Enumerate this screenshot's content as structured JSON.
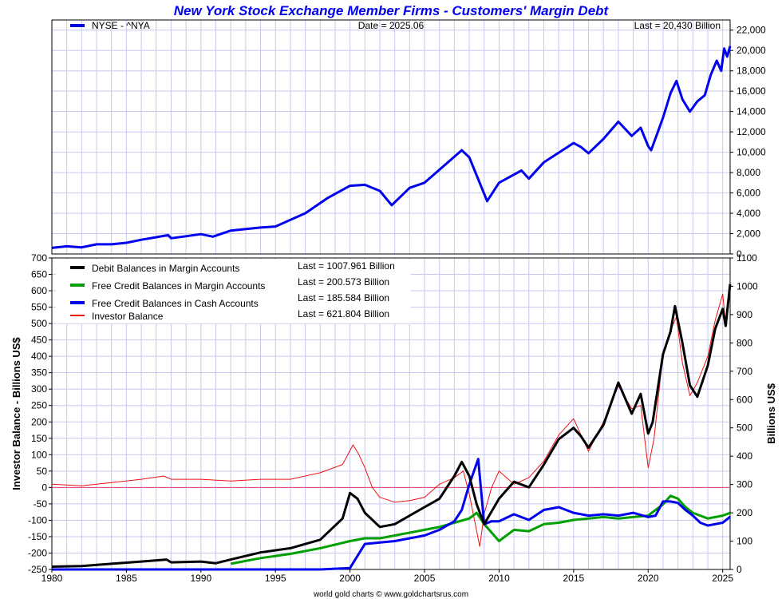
{
  "chart_data": [
    {
      "panel": "top",
      "type": "line",
      "title": "New York Stock Exchange Member Firms - Customers' Margin Debt",
      "date_label": "Date = 2025.06",
      "last_label": "Last = 20,430 Billion",
      "xlim": [
        1980,
        2025.5
      ],
      "ylim": [
        0,
        23000
      ],
      "y_axis_side": "right",
      "yticks": [
        0,
        2000,
        4000,
        6000,
        8000,
        10000,
        12000,
        14000,
        16000,
        18000,
        20000,
        22000
      ],
      "ytick_labels": [
        "0",
        "2,000",
        "4,000",
        "6,000",
        "8,000",
        "10,000",
        "12,000",
        "14,000",
        "16,000",
        "18,000",
        "20,000",
        "22,000"
      ],
      "grid": true,
      "legend_placement": "top-left",
      "series": [
        {
          "name": "NYSE - ^NYA",
          "color": "#0000ee",
          "x": [
            1980,
            1981,
            1982,
            1983,
            1984,
            1985,
            1986,
            1987,
            1987.8,
            1988,
            1990,
            1990.8,
            1992,
            1994,
            1995,
            1997,
            1998.5,
            1999,
            2000,
            2001,
            2002,
            2002.8,
            2004,
            2005,
            2007.5,
            2008,
            2009.2,
            2010,
            2011.5,
            2012,
            2013,
            2015,
            2015.5,
            2016,
            2017,
            2018,
            2018.9,
            2019.5,
            2020,
            2020.2,
            2020.6,
            2021,
            2021.5,
            2021.9,
            2022.3,
            2022.8,
            2023.3,
            2023.8,
            2024.2,
            2024.6,
            2024.9,
            2025.1,
            2025.3,
            2025.5
          ],
          "y": [
            600,
            750,
            650,
            950,
            950,
            1100,
            1400,
            1650,
            1850,
            1550,
            1950,
            1700,
            2300,
            2600,
            2700,
            4000,
            5500,
            5900,
            6700,
            6800,
            6200,
            4800,
            6500,
            7000,
            10200,
            9500,
            5200,
            7000,
            8200,
            7400,
            9000,
            10900,
            10500,
            9900,
            11300,
            13000,
            11600,
            12400,
            10600,
            10200,
            11800,
            13400,
            15800,
            17000,
            15200,
            14000,
            15000,
            15600,
            17600,
            19000,
            18000,
            20200,
            19400,
            20430
          ]
        }
      ]
    },
    {
      "panel": "bottom",
      "type": "line",
      "xlim": [
        1980,
        2025.5
      ],
      "xticks": [
        1980,
        1985,
        1990,
        1995,
        2000,
        2005,
        2010,
        2015,
        2020,
        2025
      ],
      "xtick_labels": [
        "1980",
        "1985",
        "1990",
        "1995",
        "2000",
        "2005",
        "2010",
        "2015",
        "2020",
        "2025"
      ],
      "left_axis": {
        "label": "Investor Balance - Billions US$",
        "ylim": [
          -250,
          700
        ],
        "ticks": [
          -250,
          -200,
          -150,
          -100,
          -50,
          0,
          50,
          100,
          150,
          200,
          250,
          300,
          350,
          400,
          450,
          500,
          550,
          600,
          650,
          700
        ],
        "tick_labels": [
          "-250",
          "-200",
          "-150",
          "-100",
          "-50",
          "0",
          "50",
          "100",
          "150",
          "200",
          "250",
          "300",
          "350",
          "400",
          "450",
          "500",
          "550",
          "600",
          "650",
          "700"
        ]
      },
      "right_axis": {
        "label": "Billions US$",
        "ylim": [
          0,
          1100
        ],
        "ticks": [
          0,
          100,
          200,
          300,
          400,
          500,
          600,
          700,
          800,
          900,
          1000,
          1100
        ],
        "tick_labels": [
          "0",
          "100",
          "200",
          "300",
          "400",
          "500",
          "600",
          "700",
          "800",
          "900",
          "1000",
          "1100"
        ]
      },
      "grid": true,
      "legend_placement": "top-left",
      "zero_line_color": "#dd4477",
      "series": [
        {
          "name": "Debit Balances in Margin Accounts",
          "last": "Last = 1007.961 Billion",
          "axis": "right",
          "color": "#000000",
          "x": [
            1980,
            1982,
            1984,
            1986,
            1987.7,
            1988,
            1990,
            1991,
            1992,
            1994,
            1996,
            1998,
            1999.5,
            2000,
            2000.5,
            2001,
            2002,
            2003,
            2005,
            2006,
            2007,
            2007.5,
            2008,
            2008.5,
            2009,
            2010,
            2011,
            2012,
            2013,
            2014,
            2015,
            2015.5,
            2016,
            2017,
            2018,
            2018.9,
            2019.5,
            2020,
            2020.3,
            2021,
            2021.5,
            2021.8,
            2022.3,
            2022.8,
            2023.3,
            2024,
            2024.5,
            2025,
            2025.2,
            2025.5
          ],
          "y": [
            10,
            12,
            20,
            28,
            35,
            25,
            28,
            22,
            35,
            60,
            75,
            105,
            180,
            270,
            250,
            200,
            150,
            160,
            220,
            250,
            330,
            380,
            330,
            230,
            160,
            250,
            310,
            290,
            370,
            460,
            500,
            470,
            430,
            510,
            660,
            550,
            620,
            480,
            520,
            760,
            840,
            930,
            800,
            650,
            610,
            720,
            850,
            920,
            860,
            1008
          ]
        },
        {
          "name": "Free Credit Balances in Margin Accounts",
          "last": "Last = 200.573 Billion",
          "axis": "right",
          "color": "#00a000",
          "x": [
            1992,
            1994,
            1996,
            1998,
            2000,
            2001,
            2002,
            2003,
            2005,
            2006,
            2007,
            2008,
            2008.5,
            2009,
            2010,
            2011,
            2012,
            2013,
            2014,
            2015,
            2016,
            2017,
            2018,
            2019,
            2020,
            2020.5,
            2021,
            2021.5,
            2022,
            2022.5,
            2023,
            2024,
            2025,
            2025.5
          ],
          "y": [
            20,
            40,
            55,
            75,
            100,
            110,
            110,
            120,
            140,
            150,
            165,
            180,
            200,
            160,
            100,
            140,
            135,
            160,
            165,
            175,
            180,
            185,
            180,
            185,
            190,
            210,
            230,
            260,
            250,
            220,
            200,
            180,
            190,
            200
          ]
        },
        {
          "name": "Free Credit Balances in Cash Accounts",
          "last": "Last = 185.584 Billion",
          "axis": "right",
          "color": "#0000ee",
          "x": [
            1980,
            1985,
            1990,
            1995,
            1998,
            2000,
            2001,
            2002,
            2003,
            2004,
            2005,
            2006,
            2007,
            2007.5,
            2008,
            2008.6,
            2009,
            2009.5,
            2010,
            2011,
            2012,
            2013,
            2014,
            2015,
            2016,
            2017,
            2018,
            2019,
            2020,
            2020.5,
            2021,
            2021.5,
            2022,
            2022.5,
            2023,
            2023.5,
            2024,
            2025,
            2025.5
          ],
          "y": [
            0,
            0,
            0,
            0,
            0,
            5,
            90,
            95,
            100,
            110,
            120,
            140,
            170,
            210,
            300,
            390,
            160,
            170,
            170,
            195,
            175,
            210,
            220,
            200,
            190,
            195,
            190,
            200,
            185,
            190,
            240,
            240,
            235,
            210,
            190,
            165,
            155,
            165,
            186
          ]
        },
        {
          "name": "Investor Balance",
          "last": "Last = 621.804 Billion",
          "axis": "left",
          "color": "#ee1111",
          "x": [
            1980,
            1982,
            1984,
            1986,
            1987.5,
            1988,
            1990,
            1992,
            1994,
            1996,
            1998,
            1999.5,
            2000.2,
            2000.6,
            2001,
            2001.5,
            2002,
            2003,
            2004,
            2005,
            2006,
            2007,
            2007.6,
            2008,
            2008.7,
            2009,
            2009.5,
            2010,
            2011,
            2012,
            2013,
            2014,
            2015,
            2016,
            2017,
            2018,
            2018.9,
            2019.5,
            2020,
            2020.4,
            2021,
            2021.5,
            2021.9,
            2022.3,
            2022.8,
            2023.3,
            2024,
            2024.5,
            2025,
            2025.2,
            2025.5
          ],
          "y": [
            10,
            5,
            15,
            25,
            35,
            25,
            25,
            20,
            25,
            25,
            45,
            70,
            130,
            100,
            60,
            0,
            -30,
            -45,
            -40,
            -30,
            10,
            30,
            50,
            -20,
            -180,
            -80,
            0,
            50,
            10,
            30,
            80,
            160,
            210,
            110,
            200,
            310,
            240,
            250,
            60,
            150,
            410,
            480,
            520,
            380,
            280,
            320,
            400,
            510,
            590,
            500,
            622
          ]
        }
      ]
    }
  ],
  "footer": "world gold charts © www.goldchartsrus.com"
}
